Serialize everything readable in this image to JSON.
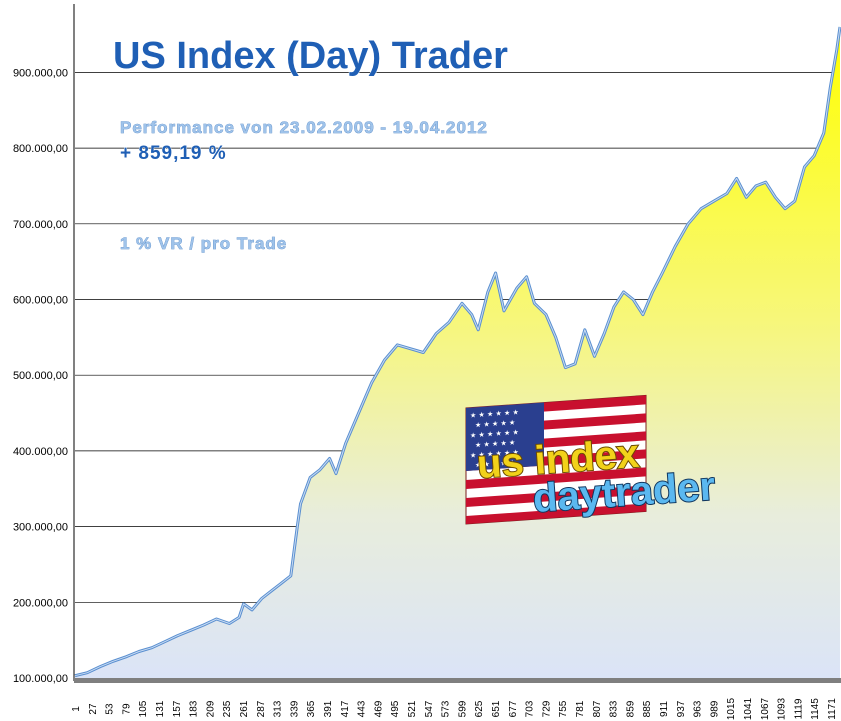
{
  "chart_data": {
    "type": "area",
    "title": "US Index (Day) Trader",
    "subtitle": "Performance  von  23.02.2009 - 19.04.2012",
    "performance": "+ 859,19  %",
    "note": "1 % VR / pro Trade",
    "logo": {
      "line1": "us index",
      "line2": "daytrader"
    },
    "ylim": [
      100000,
      960000
    ],
    "y_ticks": [
      "100.000,00",
      "200.000,00",
      "300.000,00",
      "400.000,00",
      "500.000,00",
      "600.000,00",
      "700.000,00",
      "800.000,00",
      "900.000,00"
    ],
    "y_tick_values": [
      100000,
      200000,
      300000,
      400000,
      500000,
      600000,
      700000,
      800000,
      900000
    ],
    "x_ticks": [
      "1",
      "27",
      "53",
      "79",
      "105",
      "131",
      "157",
      "183",
      "209",
      "235",
      "261",
      "287",
      "313",
      "339",
      "365",
      "391",
      "417",
      "443",
      "469",
      "495",
      "521",
      "547",
      "573",
      "599",
      "625",
      "651",
      "677",
      "703",
      "729",
      "755",
      "781",
      "807",
      "833",
      "859",
      "885",
      "911",
      "937",
      "963",
      "989",
      "1015",
      "1041",
      "1067",
      "1093",
      "1119",
      "1145",
      "1171"
    ],
    "xlim": [
      1,
      1185
    ],
    "series": [
      {
        "x": [
          1,
          20,
          40,
          60,
          80,
          100,
          120,
          140,
          160,
          180,
          200,
          220,
          240,
          255,
          262,
          275,
          290,
          305,
          320,
          335,
          345,
          350,
          365,
          380,
          395,
          405,
          420,
          440,
          460,
          480,
          500,
          520,
          540,
          560,
          580,
          600,
          615,
          625,
          640,
          652,
          665,
          685,
          700,
          712,
          730,
          745,
          760,
          775,
          790,
          805,
          820,
          835,
          850,
          865,
          880,
          895,
          910,
          930,
          950,
          970,
          990,
          1010,
          1025,
          1040,
          1055,
          1070,
          1085,
          1100,
          1115,
          1130,
          1145,
          1160,
          1170,
          1180,
          1185
        ],
        "values": [
          103000,
          107000,
          115000,
          122000,
          128000,
          135000,
          140000,
          148000,
          156000,
          163000,
          170000,
          178000,
          172000,
          180000,
          198000,
          190000,
          205000,
          215000,
          225000,
          235000,
          300000,
          330000,
          365000,
          375000,
          390000,
          370000,
          410000,
          450000,
          490000,
          520000,
          540000,
          535000,
          530000,
          555000,
          570000,
          595000,
          580000,
          560000,
          610000,
          635000,
          585000,
          615000,
          630000,
          595000,
          580000,
          550000,
          510000,
          515000,
          560000,
          525000,
          555000,
          590000,
          610000,
          600000,
          580000,
          610000,
          635000,
          670000,
          700000,
          720000,
          730000,
          740000,
          760000,
          735000,
          750000,
          755000,
          735000,
          720000,
          730000,
          775000,
          790000,
          820000,
          880000,
          930000,
          960000
        ]
      }
    ],
    "colors": {
      "line": "#5a8fd0",
      "fill_top": "#ffff00",
      "fill_bottom": "#dfe7f8",
      "grid": "#000000"
    },
    "grid": true,
    "legend": "none"
  }
}
